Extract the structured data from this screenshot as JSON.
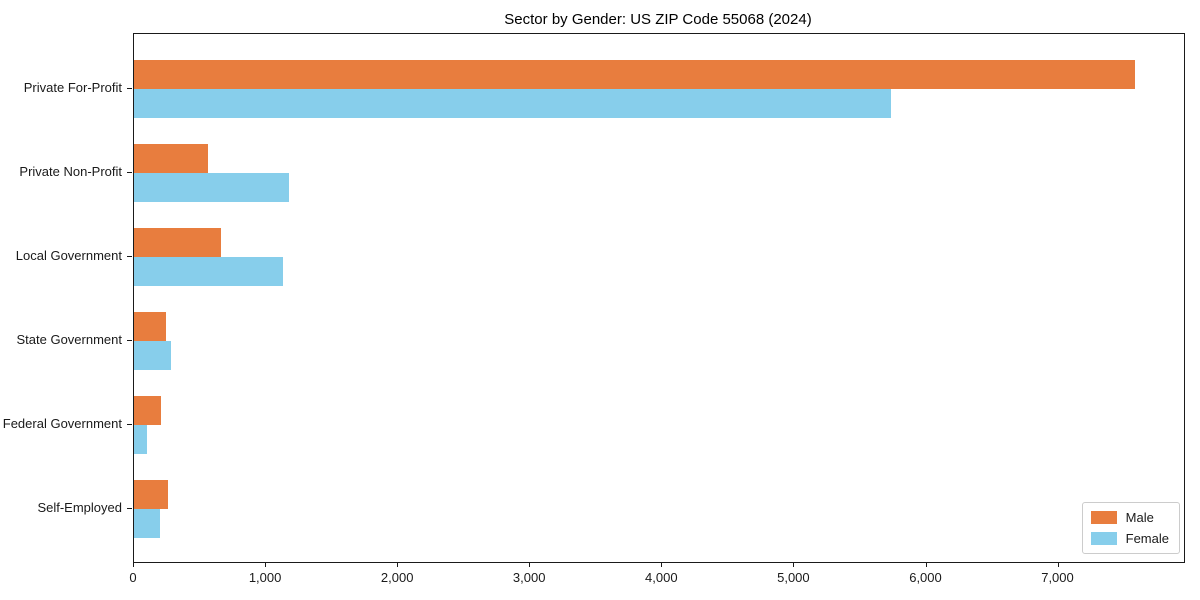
{
  "chart_data": {
    "type": "bar",
    "orientation": "horizontal",
    "title": "Sector by Gender: US ZIP Code 55068 (2024)",
    "categories": [
      "Private For-Profit",
      "Private Non-Profit",
      "Local Government",
      "State Government",
      "Federal Government",
      "Self-Employed"
    ],
    "series": [
      {
        "name": "Male",
        "color": "#e87d3e",
        "values": [
          7580,
          560,
          660,
          240,
          205,
          255
        ]
      },
      {
        "name": "Female",
        "color": "#87ceeb",
        "values": [
          5730,
          1170,
          1130,
          280,
          100,
          200
        ]
      }
    ],
    "xlabel": "",
    "ylabel": "",
    "xlim": [
      0,
      7950
    ],
    "xticks": [
      0,
      1000,
      2000,
      3000,
      4000,
      5000,
      6000,
      7000
    ],
    "xtick_labels": [
      "0",
      "1,000",
      "2,000",
      "3,000",
      "4,000",
      "5,000",
      "6,000",
      "7,000"
    ],
    "grid": false,
    "legend": {
      "position": "lower right",
      "entries": [
        "Male",
        "Female"
      ]
    }
  }
}
